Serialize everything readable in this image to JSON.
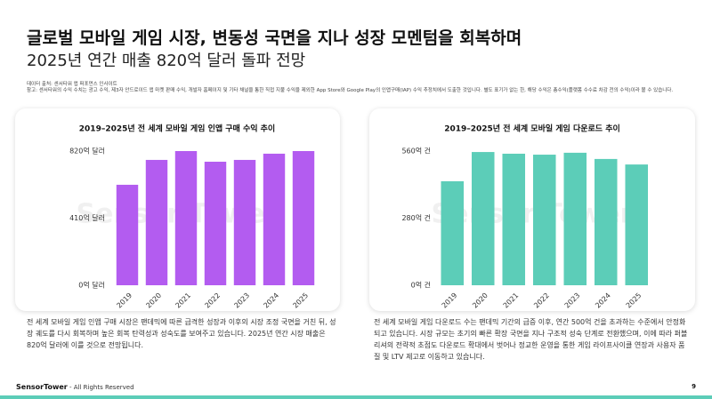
{
  "header": {
    "title": "글로벌 모바일 게임 시장, 변동성 국면을 지나 성장 모멘텀을 회복하며",
    "subtitle": "2025년 연간 매출 820억 달러 돌파 전망",
    "source": "데이터 출처: 센서타워 앱 퍼포먼스 인사이트",
    "note": "참고: 센서타워의 수익 수치는 광고 수익, 제3자 안드로이드 앱 마켓 판매 수익, 개발자 홈페이지 및 기타 채널을 통한 직접 지불 수익을 제외한 App Store와 Google Play의 인앱구매(IAP) 수익 추정치에서 도출한 것입니다. 별도 표기가 없는 한, 해당 수익은 총수익(플랫폼 수수료 차감 전의 수익)이라 볼 수 있습니다."
  },
  "watermark": "Sensor Tower",
  "chart_data": [
    {
      "type": "bar",
      "title": "2019–2025년 전 세계 모바일 게임 인앱 구매 수익 추이",
      "categories": [
        "2019",
        "2020",
        "2021",
        "2022",
        "2023",
        "2024",
        "2025"
      ],
      "values": [
        614,
        766,
        820,
        755,
        766,
        804,
        820
      ],
      "color": "#b35cf0",
      "ylim": [
        0,
        820
      ],
      "yticks": [
        {
          "value": 0,
          "label": "0억 달러"
        },
        {
          "value": 410,
          "label": "410억 달러"
        },
        {
          "value": 820,
          "label": "820억 달러"
        }
      ]
    },
    {
      "type": "bar",
      "title": "2019–2025년 전 세계 모바일 게임 다운로드 추이",
      "categories": [
        "2019",
        "2020",
        "2021",
        "2022",
        "2023",
        "2024",
        "2025"
      ],
      "values": [
        434,
        556,
        549,
        545,
        553,
        527,
        504
      ],
      "color": "#5ccdb8",
      "ylim": [
        0,
        560
      ],
      "yticks": [
        {
          "value": 0,
          "label": "0억 건"
        },
        {
          "value": 280,
          "label": "280억 건"
        },
        {
          "value": 560,
          "label": "560억 건"
        }
      ]
    }
  ],
  "descriptions": [
    "전 세계 모바일 게임 인앱 구매 시장은 팬데믹에 따른 급격한 성장과 이후의 시장 조정 국면을 거친 뒤, 성장 궤도를 다시 회복하며 높은 회복 탄력성과 성숙도를 보여주고 있습니다. 2025년 연간 시장 매출은 820억 달러에 이를 것으로 전망됩니다.",
    "전 세계 모바일 게임 다운로드 수는 팬데믹 기간의 급증 이후, 연간 500억 건을 초과하는 수준에서 안정화 되고 있습니다. 시장 규모는 초기의 빠른 확장 국면을 지나 구조적 성숙 단계로 전환했으며, 이에 따라 퍼블리셔의 전략적 초점도 다운로드 확대에서 벗어나 정교한 운영을 통한 게임 라이프사이클 연장과 사용자 품질 및 LTV 제고로 이동하고 있습니다."
  ],
  "footer": {
    "brand": "SensorTower",
    "rights": "- All Rights Reserved",
    "page": "9"
  }
}
